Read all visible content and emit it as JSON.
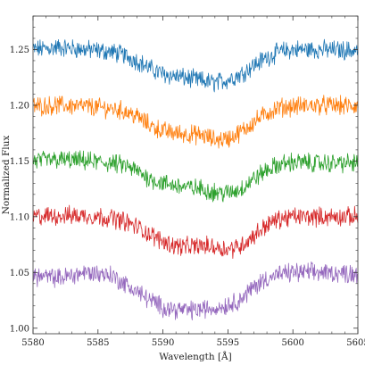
{
  "chart_data": {
    "type": "line",
    "title": "",
    "xlabel": "Wavelength [Å]",
    "ylabel": "Normalized Flux",
    "xlim": [
      5580,
      5605
    ],
    "ylim": [
      0.995,
      1.28
    ],
    "grid": false,
    "x_ticks": [
      5580,
      5585,
      5590,
      5595,
      5600,
      5605
    ],
    "x_tick_labels": [
      "5580",
      "5585",
      "5590",
      "5595",
      "5600",
      "5605"
    ],
    "y_ticks": [
      1.0,
      1.05,
      1.1,
      1.15,
      1.2,
      1.25
    ],
    "y_tick_labels": [
      "1.00",
      "1.05",
      "1.10",
      "1.15",
      "1.20",
      "1.25"
    ],
    "series": [
      {
        "color": "#1f77b4",
        "x": [
          5580,
          5582,
          5584,
          5586,
          5587,
          5588,
          5589,
          5590,
          5591,
          5592,
          5593,
          5594,
          5595,
          5596,
          5597,
          5598,
          5599,
          5600,
          5602,
          5605
        ],
        "y": [
          1.25,
          1.252,
          1.25,
          1.248,
          1.245,
          1.24,
          1.233,
          1.228,
          1.226,
          1.224,
          1.222,
          1.22,
          1.223,
          1.228,
          1.236,
          1.243,
          1.248,
          1.25,
          1.25,
          1.249
        ]
      },
      {
        "color": "#ff7f0e",
        "x": [
          5580,
          5582,
          5584,
          5586,
          5587,
          5588,
          5589,
          5590,
          5591,
          5592,
          5593,
          5594,
          5595,
          5596,
          5597,
          5598,
          5599,
          5600,
          5602,
          5605
        ],
        "y": [
          1.199,
          1.2,
          1.199,
          1.197,
          1.195,
          1.19,
          1.182,
          1.177,
          1.175,
          1.174,
          1.173,
          1.169,
          1.17,
          1.176,
          1.185,
          1.193,
          1.198,
          1.199,
          1.2,
          1.199
        ]
      },
      {
        "color": "#2ca02c",
        "x": [
          5580,
          5582,
          5584,
          5586,
          5587,
          5588,
          5589,
          5590,
          5591,
          5592,
          5593,
          5594,
          5595,
          5596,
          5597,
          5598,
          5599,
          5600,
          5602,
          5605
        ],
        "y": [
          1.15,
          1.151,
          1.15,
          1.148,
          1.146,
          1.141,
          1.134,
          1.13,
          1.128,
          1.126,
          1.125,
          1.122,
          1.121,
          1.125,
          1.134,
          1.142,
          1.147,
          1.149,
          1.148,
          1.148
        ]
      },
      {
        "color": "#d62728",
        "x": [
          5580,
          5582,
          5584,
          5586,
          5587,
          5588,
          5589,
          5590,
          5591,
          5592,
          5593,
          5594,
          5595,
          5596,
          5597,
          5598,
          5599,
          5600,
          5602,
          5605
        ],
        "y": [
          1.1,
          1.101,
          1.101,
          1.099,
          1.096,
          1.091,
          1.084,
          1.078,
          1.074,
          1.073,
          1.074,
          1.073,
          1.071,
          1.074,
          1.083,
          1.093,
          1.098,
          1.1,
          1.1,
          1.1
        ]
      },
      {
        "color": "#9467bd",
        "x": [
          5580,
          5582,
          5584,
          5586,
          5587,
          5588,
          5589,
          5590,
          5591,
          5592,
          5593,
          5594,
          5595,
          5596,
          5597,
          5598,
          5599,
          5600,
          5602,
          5605
        ],
        "y": [
          1.047,
          1.045,
          1.05,
          1.048,
          1.04,
          1.033,
          1.025,
          1.019,
          1.017,
          1.016,
          1.017,
          1.018,
          1.021,
          1.026,
          1.037,
          1.045,
          1.048,
          1.05,
          1.05,
          1.049
        ]
      }
    ]
  }
}
